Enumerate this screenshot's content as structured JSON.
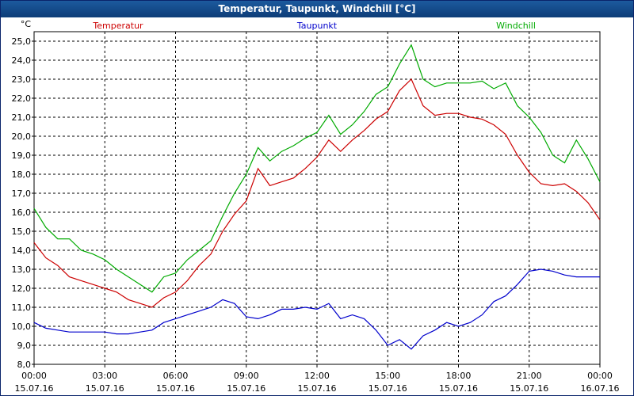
{
  "title": "Temperatur, Taupunkt, Windchill [°C]",
  "chart_data": {
    "type": "line",
    "unit": "°C",
    "ylim": [
      8.0,
      25.5
    ],
    "y_ticks": [
      "8,0",
      "9,0",
      "10,0",
      "11,0",
      "12,0",
      "13,0",
      "14,0",
      "15,0",
      "16,0",
      "17,0",
      "18,0",
      "19,0",
      "20,0",
      "21,0",
      "22,0",
      "23,0",
      "24,0",
      "25,0"
    ],
    "x_ticks": [
      {
        "time": "00:00",
        "date": "15.07.16"
      },
      {
        "time": "03:00",
        "date": "15.07.16"
      },
      {
        "time": "06:00",
        "date": "15.07.16"
      },
      {
        "time": "09:00",
        "date": "15.07.16"
      },
      {
        "time": "12:00",
        "date": "15.07.16"
      },
      {
        "time": "15:00",
        "date": "15.07.16"
      },
      {
        "time": "18:00",
        "date": "15.07.16"
      },
      {
        "time": "21:00",
        "date": "15.07.16"
      },
      {
        "time": "00:00",
        "date": "16.07.16"
      }
    ],
    "grid": true,
    "series": [
      {
        "name": "Temperatur",
        "color": "#cc0000",
        "x": [
          0,
          0.5,
          1,
          1.5,
          2,
          2.5,
          3,
          3.5,
          4,
          4.5,
          5,
          5.5,
          6,
          6.5,
          7,
          7.5,
          8,
          8.5,
          9,
          9.5,
          10,
          10.5,
          11,
          11.5,
          12,
          12.5,
          13,
          13.5,
          14,
          14.5,
          15,
          15.5,
          16,
          16.5,
          17,
          17.5,
          18,
          18.5,
          19,
          19.5,
          20,
          20.5,
          21,
          21.5,
          22,
          22.5,
          23,
          23.5,
          24
        ],
        "y": [
          14.4,
          13.6,
          13.2,
          12.6,
          12.4,
          12.2,
          12.0,
          11.8,
          11.4,
          11.2,
          11.0,
          11.5,
          11.8,
          12.4,
          13.2,
          13.8,
          15.0,
          15.9,
          16.6,
          18.3,
          17.4,
          17.6,
          17.8,
          18.3,
          18.9,
          19.8,
          19.2,
          19.8,
          20.3,
          20.9,
          21.3,
          22.4,
          23.0,
          21.6,
          21.1,
          21.2,
          21.2,
          21.0,
          20.9,
          20.6,
          20.1,
          19.0,
          18.1,
          17.5,
          17.4,
          17.5,
          17.1,
          16.5,
          15.6
        ]
      },
      {
        "name": "Taupunkt",
        "color": "#0000cc",
        "x": [
          0,
          0.5,
          1,
          1.5,
          2,
          2.5,
          3,
          3.5,
          4,
          4.5,
          5,
          5.5,
          6,
          6.5,
          7,
          7.5,
          8,
          8.5,
          9,
          9.5,
          10,
          10.5,
          11,
          11.5,
          12,
          12.5,
          13,
          13.5,
          14,
          14.5,
          15,
          15.5,
          16,
          16.5,
          17,
          17.5,
          18,
          18.5,
          19,
          19.5,
          20,
          20.5,
          21,
          21.5,
          22,
          22.5,
          23,
          23.5,
          24
        ],
        "y": [
          10.2,
          9.9,
          9.8,
          9.7,
          9.7,
          9.7,
          9.7,
          9.6,
          9.6,
          9.7,
          9.8,
          10.2,
          10.4,
          10.6,
          10.8,
          11.0,
          11.4,
          11.2,
          10.5,
          10.4,
          10.6,
          10.9,
          10.9,
          11.0,
          10.9,
          11.2,
          10.4,
          10.6,
          10.4,
          9.8,
          9.0,
          9.3,
          8.8,
          9.5,
          9.8,
          10.2,
          10.0,
          10.2,
          10.6,
          11.3,
          11.6,
          12.2,
          12.9,
          13.0,
          12.9,
          12.7,
          12.6,
          12.6,
          12.6
        ]
      },
      {
        "name": "Windchill",
        "color": "#00aa00",
        "x": [
          0,
          0.5,
          1,
          1.5,
          2,
          2.5,
          3,
          3.5,
          4,
          4.5,
          5,
          5.5,
          6,
          6.5,
          7,
          7.5,
          8,
          8.5,
          9,
          9.5,
          10,
          10.5,
          11,
          11.5,
          12,
          12.5,
          13,
          13.5,
          14,
          14.5,
          15,
          15.5,
          16,
          16.5,
          17,
          17.5,
          18,
          18.5,
          19,
          19.5,
          20,
          20.5,
          21,
          21.5,
          22,
          22.5,
          23,
          23.5,
          24
        ],
        "y": [
          16.2,
          15.2,
          14.6,
          14.6,
          14.0,
          13.8,
          13.5,
          13.0,
          12.6,
          12.2,
          11.8,
          12.6,
          12.8,
          13.5,
          14.0,
          14.5,
          15.8,
          17.0,
          18.0,
          19.4,
          18.7,
          19.2,
          19.5,
          19.9,
          20.2,
          21.1,
          20.1,
          20.6,
          21.3,
          22.2,
          22.6,
          23.8,
          24.8,
          23.0,
          22.6,
          22.8,
          22.8,
          22.8,
          22.9,
          22.5,
          22.8,
          21.6,
          21.0,
          20.2,
          19.0,
          18.6,
          19.8,
          18.8,
          17.6
        ]
      }
    ]
  }
}
